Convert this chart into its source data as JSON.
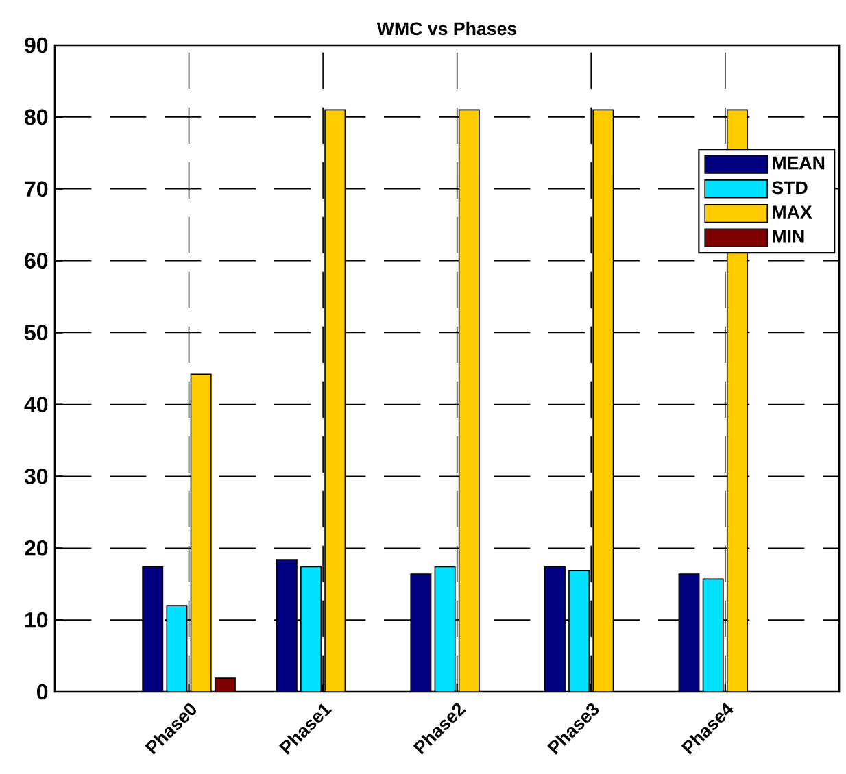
{
  "chart_data": {
    "type": "bar",
    "title": "WMC vs Phases",
    "categories": [
      "Phase0",
      "Phase1",
      "Phase2",
      "Phase3",
      "Phase4"
    ],
    "series": [
      {
        "name": "MEAN",
        "color": "#000080",
        "values": [
          17.4,
          18.4,
          16.4,
          17.4,
          16.4
        ]
      },
      {
        "name": "STD",
        "color": "#00e0ff",
        "values": [
          12.0,
          17.4,
          17.4,
          16.9,
          15.7
        ]
      },
      {
        "name": "MAX",
        "color": "#ffcc00",
        "values": [
          44.2,
          81,
          81,
          81,
          81
        ]
      },
      {
        "name": "MIN",
        "color": "#800000",
        "values": [
          1.9,
          0,
          0,
          0,
          0
        ]
      }
    ],
    "ylim": [
      0,
      90
    ],
    "yticks": [
      0,
      10,
      20,
      30,
      40,
      50,
      60,
      70,
      80,
      90
    ],
    "grid": true,
    "legend": "top right"
  }
}
